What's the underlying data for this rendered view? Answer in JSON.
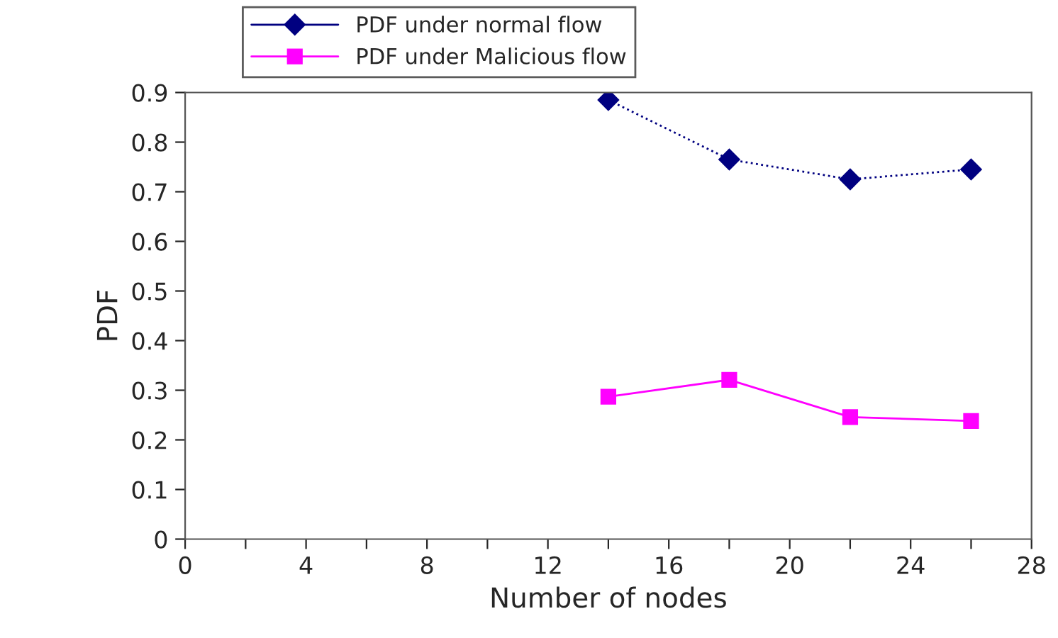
{
  "chart_data": {
    "type": "line",
    "xlabel": "Number of nodes",
    "ylabel": "PDF",
    "x": [
      14,
      18,
      22,
      26
    ],
    "series": [
      {
        "name": "PDF under normal flow",
        "color": "#000080",
        "values": [
          0.885,
          0.765,
          0.725,
          0.745
        ],
        "marker": "diamond",
        "line_style": "dotted"
      },
      {
        "name": "PDF under Malicious flow",
        "color": "#ff00ff",
        "values": [
          0.287,
          0.321,
          0.246,
          0.238
        ],
        "marker": "square",
        "line_style": "solid"
      }
    ],
    "xlim": [
      0,
      28
    ],
    "xticks": [
      0,
      {
        "value": 2,
        "label": null
      },
      4,
      {
        "value": 6,
        "label": null
      },
      8,
      {
        "value": 10,
        "label": null
      },
      12,
      {
        "value": 14,
        "label": null
      },
      16,
      {
        "value": 18,
        "label": null
      },
      20,
      {
        "value": 22,
        "label": null
      },
      24,
      {
        "value": 26,
        "label": null
      },
      28
    ],
    "ylim": [
      0,
      0.9
    ],
    "yticks": [
      0,
      0.1,
      0.2,
      0.3,
      0.4,
      0.5,
      0.6,
      0.7,
      0.8,
      0.9
    ],
    "grid": false,
    "legend": "top"
  }
}
